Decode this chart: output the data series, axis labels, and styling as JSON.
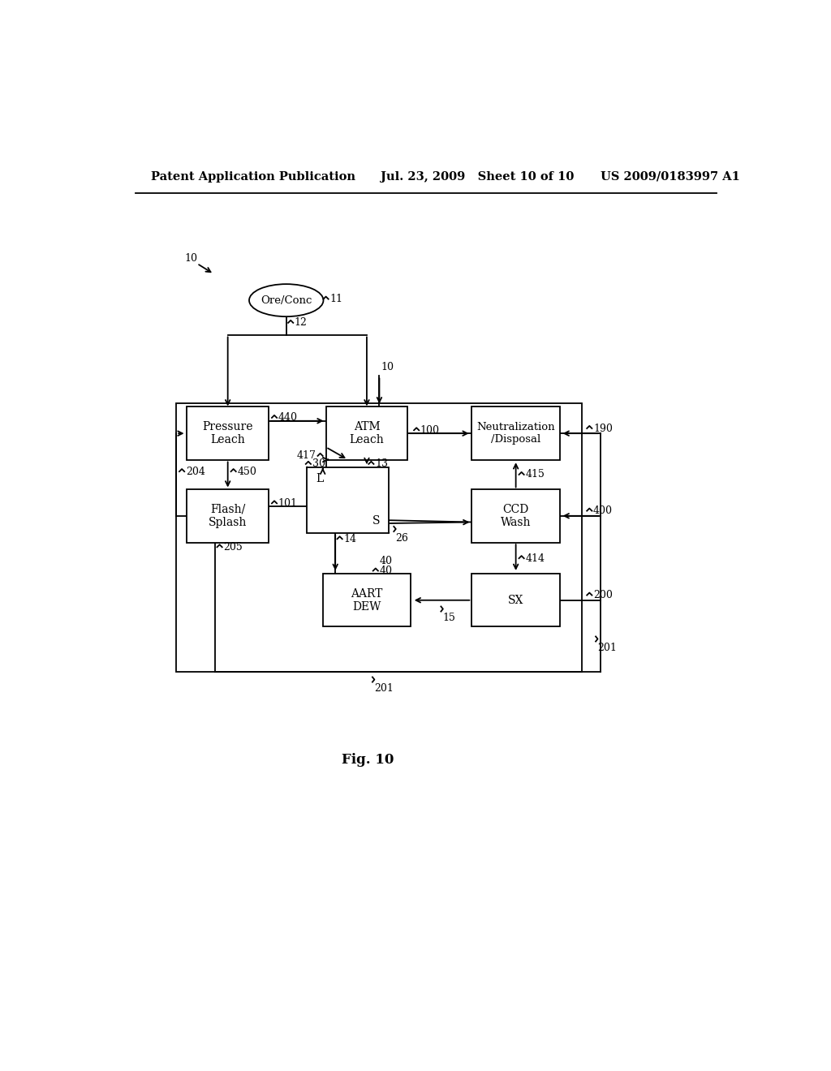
{
  "header_left": "Patent Application Publication",
  "header_mid": "Jul. 23, 2009   Sheet 10 of 10",
  "header_right": "US 2009/0183997 A1",
  "fig_label": "Fig. 10",
  "background_color": "#ffffff",
  "line_color": "#000000"
}
